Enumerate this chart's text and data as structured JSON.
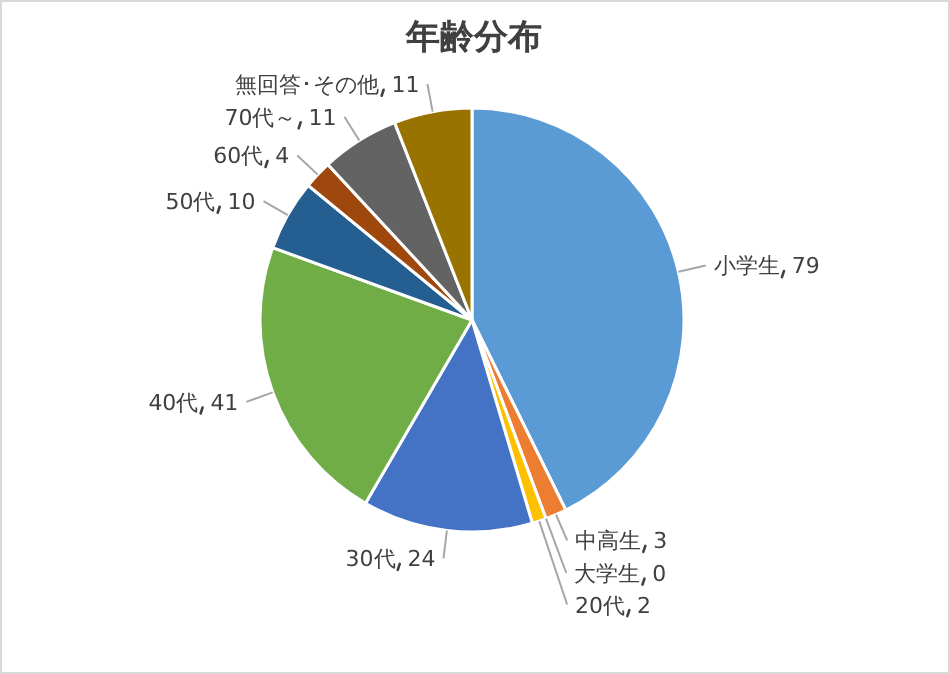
{
  "chart_data": {
    "type": "pie",
    "title": "年齢分布",
    "categories": [
      "小学生",
      "中高生",
      "大学生",
      "20代",
      "30代",
      "40代",
      "50代",
      "60代",
      "70代～",
      "無回答･その他"
    ],
    "values": [
      79,
      3,
      0,
      2,
      24,
      41,
      10,
      4,
      11,
      11
    ],
    "colors": [
      "#5b9bd5",
      "#ed7d31",
      "#a5a5a5",
      "#ffc000",
      "#4472c4",
      "#70ad47",
      "#255e91",
      "#9e480e",
      "#636363",
      "#997300"
    ],
    "value_labels": [
      "79",
      "3",
      "0",
      "2",
      "24",
      "41",
      "10",
      "4",
      "11",
      "11"
    ]
  }
}
